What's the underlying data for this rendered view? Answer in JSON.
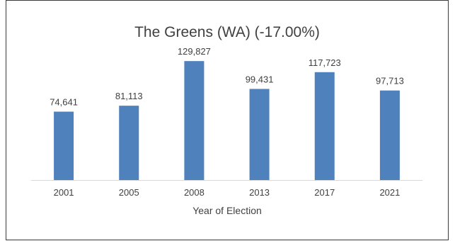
{
  "chart_data": {
    "type": "bar",
    "title": "The Greens (WA) (-17.00%)",
    "xlabel": "Year of Election",
    "ylabel": "",
    "categories": [
      "2001",
      "2005",
      "2008",
      "2013",
      "2017",
      "2021"
    ],
    "values": [
      74641,
      81113,
      129827,
      99431,
      117723,
      97713
    ],
    "value_labels": [
      "74,641",
      "81,113",
      "129,827",
      "99,431",
      "117,723",
      "97,713"
    ],
    "ylim": [
      0,
      140000
    ],
    "grid": false,
    "legend": "none",
    "colors": {
      "bar": "#4f81bd",
      "axis": "#d9d9d9",
      "text": "#404040",
      "border": "#3a3a3a"
    }
  }
}
